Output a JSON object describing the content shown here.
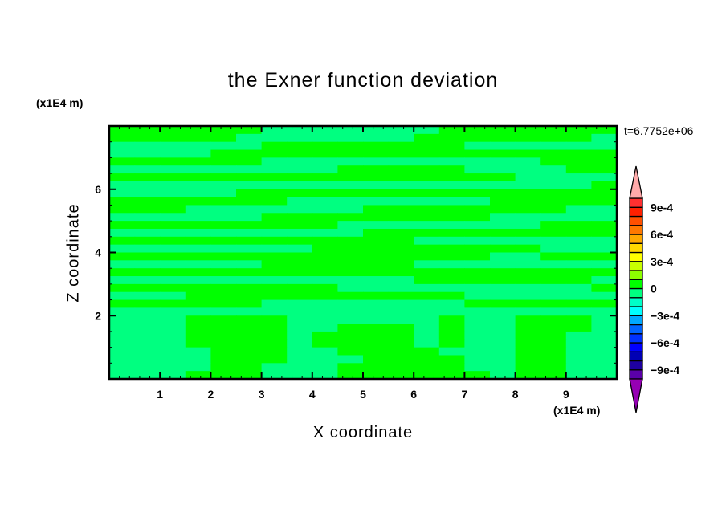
{
  "chart_data": {
    "type": "heatmap",
    "title": "the Exner function deviation",
    "xlabel": "X coordinate",
    "ylabel": "Z coordinate",
    "x_unit": "(x1E4 m)",
    "y_unit": "(x1E4 m)",
    "time_label": "t=6.7752e+06",
    "xlim": [
      0,
      10
    ],
    "ylim": [
      0,
      8
    ],
    "x_ticks": [
      1,
      2,
      3,
      4,
      5,
      6,
      7,
      8,
      9
    ],
    "y_ticks": [
      2,
      4,
      6
    ],
    "x_tick_labels": [
      "1",
      "2",
      "3",
      "4",
      "5",
      "6",
      "7",
      "8",
      "9"
    ],
    "y_tick_labels": [
      "2",
      "4",
      "6"
    ],
    "grid_x_step": 0.5,
    "grid_z_step": 0.25,
    "grid_rows_top_to_bottom": [
      [
        5e-05,
        5e-05,
        5e-05,
        5e-05,
        5e-05,
        5e-05,
        -5e-05,
        -5e-05,
        -5e-05,
        -5e-05,
        -5e-05,
        -5e-05,
        -5e-05,
        5e-05,
        5e-05,
        5e-05,
        5e-05,
        5e-05,
        5e-05,
        5e-05
      ],
      [
        5e-05,
        5e-05,
        5e-05,
        5e-05,
        5e-05,
        -5e-05,
        -5e-05,
        -5e-05,
        -5e-05,
        -5e-05,
        -5e-05,
        -5e-05,
        5e-05,
        5e-05,
        5e-05,
        5e-05,
        5e-05,
        5e-05,
        5e-05,
        -5e-05
      ],
      [
        -5e-05,
        -5e-05,
        -5e-05,
        -5e-05,
        -5e-05,
        -5e-05,
        5e-05,
        5e-05,
        5e-05,
        5e-05,
        5e-05,
        5e-05,
        5e-05,
        5e-05,
        -5e-05,
        -5e-05,
        -5e-05,
        -5e-05,
        -5e-05,
        -5e-05
      ],
      [
        -5e-05,
        -5e-05,
        -5e-05,
        -5e-05,
        5e-05,
        5e-05,
        5e-05,
        5e-05,
        5e-05,
        5e-05,
        5e-05,
        5e-05,
        5e-05,
        5e-05,
        5e-05,
        5e-05,
        5e-05,
        5e-05,
        5e-05,
        5e-05
      ],
      [
        5e-05,
        5e-05,
        5e-05,
        5e-05,
        5e-05,
        5e-05,
        -5e-05,
        -5e-05,
        -5e-05,
        -5e-05,
        -5e-05,
        -5e-05,
        -5e-05,
        -5e-05,
        -5e-05,
        -5e-05,
        -5e-05,
        5e-05,
        5e-05,
        5e-05
      ],
      [
        -5e-05,
        -5e-05,
        -5e-05,
        -5e-05,
        -5e-05,
        -5e-05,
        -5e-05,
        -5e-05,
        -5e-05,
        5e-05,
        5e-05,
        5e-05,
        5e-05,
        5e-05,
        -5e-05,
        -5e-05,
        -5e-05,
        -5e-05,
        5e-05,
        5e-05
      ],
      [
        5e-05,
        5e-05,
        5e-05,
        5e-05,
        5e-05,
        5e-05,
        5e-05,
        5e-05,
        5e-05,
        5e-05,
        5e-05,
        5e-05,
        5e-05,
        5e-05,
        5e-05,
        5e-05,
        -5e-05,
        -5e-05,
        -5e-05,
        -5e-05
      ],
      [
        -5e-05,
        -5e-05,
        -5e-05,
        -5e-05,
        -5e-05,
        -5e-05,
        -5e-05,
        -5e-05,
        -5e-05,
        -5e-05,
        -5e-05,
        -5e-05,
        -5e-05,
        -5e-05,
        -5e-05,
        -5e-05,
        -5e-05,
        -5e-05,
        -5e-05,
        5e-05
      ],
      [
        -5e-05,
        -5e-05,
        -5e-05,
        -5e-05,
        -5e-05,
        5e-05,
        5e-05,
        5e-05,
        5e-05,
        5e-05,
        5e-05,
        5e-05,
        5e-05,
        5e-05,
        5e-05,
        5e-05,
        5e-05,
        5e-05,
        5e-05,
        5e-05
      ],
      [
        5e-05,
        5e-05,
        5e-05,
        5e-05,
        5e-05,
        5e-05,
        5e-05,
        -5e-05,
        -5e-05,
        -5e-05,
        -5e-05,
        -5e-05,
        -5e-05,
        -5e-05,
        -5e-05,
        5e-05,
        5e-05,
        5e-05,
        5e-05,
        5e-05
      ],
      [
        5e-05,
        5e-05,
        5e-05,
        -5e-05,
        -5e-05,
        -5e-05,
        -5e-05,
        -5e-05,
        -5e-05,
        -5e-05,
        5e-05,
        5e-05,
        5e-05,
        5e-05,
        5e-05,
        5e-05,
        5e-05,
        5e-05,
        -5e-05,
        -5e-05
      ],
      [
        -5e-05,
        -5e-05,
        -5e-05,
        -5e-05,
        -5e-05,
        -5e-05,
        5e-05,
        5e-05,
        5e-05,
        5e-05,
        5e-05,
        5e-05,
        5e-05,
        5e-05,
        5e-05,
        -5e-05,
        -5e-05,
        -5e-05,
        -5e-05,
        -5e-05
      ],
      [
        5e-05,
        5e-05,
        5e-05,
        5e-05,
        5e-05,
        5e-05,
        5e-05,
        5e-05,
        5e-05,
        -5e-05,
        -5e-05,
        -5e-05,
        -5e-05,
        -5e-05,
        -5e-05,
        -5e-05,
        -5e-05,
        5e-05,
        5e-05,
        5e-05
      ],
      [
        -5e-05,
        -5e-05,
        -5e-05,
        -5e-05,
        -5e-05,
        -5e-05,
        -5e-05,
        -5e-05,
        -5e-05,
        -5e-05,
        5e-05,
        5e-05,
        5e-05,
        5e-05,
        5e-05,
        5e-05,
        5e-05,
        5e-05,
        5e-05,
        5e-05
      ],
      [
        5e-05,
        5e-05,
        5e-05,
        5e-05,
        5e-05,
        5e-05,
        5e-05,
        5e-05,
        5e-05,
        5e-05,
        5e-05,
        5e-05,
        -5e-05,
        -5e-05,
        -5e-05,
        -5e-05,
        -5e-05,
        -5e-05,
        -5e-05,
        -5e-05
      ],
      [
        -5e-05,
        -5e-05,
        -5e-05,
        -5e-05,
        -5e-05,
        -5e-05,
        -5e-05,
        -5e-05,
        5e-05,
        5e-05,
        5e-05,
        5e-05,
        5e-05,
        5e-05,
        5e-05,
        5e-05,
        5e-05,
        -5e-05,
        -5e-05,
        -5e-05
      ],
      [
        5e-05,
        5e-05,
        5e-05,
        5e-05,
        5e-05,
        5e-05,
        5e-05,
        5e-05,
        5e-05,
        5e-05,
        5e-05,
        5e-05,
        5e-05,
        5e-05,
        5e-05,
        -5e-05,
        -5e-05,
        5e-05,
        5e-05,
        5e-05
      ],
      [
        -5e-05,
        -5e-05,
        -5e-05,
        -5e-05,
        -5e-05,
        -5e-05,
        5e-05,
        5e-05,
        5e-05,
        5e-05,
        5e-05,
        5e-05,
        -5e-05,
        -5e-05,
        -5e-05,
        -5e-05,
        -5e-05,
        -5e-05,
        -5e-05,
        -5e-05
      ],
      [
        5e-05,
        5e-05,
        5e-05,
        5e-05,
        5e-05,
        5e-05,
        5e-05,
        5e-05,
        5e-05,
        5e-05,
        5e-05,
        5e-05,
        5e-05,
        5e-05,
        5e-05,
        5e-05,
        5e-05,
        5e-05,
        5e-05,
        5e-05
      ],
      [
        -5e-05,
        -5e-05,
        -5e-05,
        -5e-05,
        -5e-05,
        -5e-05,
        -5e-05,
        -5e-05,
        -5e-05,
        -5e-05,
        -5e-05,
        -5e-05,
        5e-05,
        5e-05,
        5e-05,
        5e-05,
        5e-05,
        5e-05,
        5e-05,
        -5e-05
      ],
      [
        5e-05,
        5e-05,
        5e-05,
        5e-05,
        5e-05,
        5e-05,
        5e-05,
        5e-05,
        5e-05,
        -5e-05,
        -5e-05,
        -5e-05,
        -5e-05,
        -5e-05,
        -5e-05,
        -5e-05,
        -5e-05,
        -5e-05,
        -5e-05,
        5e-05
      ],
      [
        -5e-05,
        -5e-05,
        -5e-05,
        5e-05,
        5e-05,
        5e-05,
        5e-05,
        5e-05,
        5e-05,
        5e-05,
        5e-05,
        5e-05,
        5e-05,
        5e-05,
        -5e-05,
        -5e-05,
        -5e-05,
        -5e-05,
        -5e-05,
        -5e-05
      ],
      [
        5e-05,
        5e-05,
        5e-05,
        5e-05,
        5e-05,
        5e-05,
        -5e-05,
        -5e-05,
        -5e-05,
        -5e-05,
        -5e-05,
        -5e-05,
        -5e-05,
        -5e-05,
        5e-05,
        5e-05,
        5e-05,
        5e-05,
        5e-05,
        5e-05
      ],
      [
        -5e-05,
        -5e-05,
        -5e-05,
        -5e-05,
        -5e-05,
        -5e-05,
        -5e-05,
        -5e-05,
        -5e-05,
        -5e-05,
        -5e-05,
        -5e-05,
        -5e-05,
        -5e-05,
        -5e-05,
        -5e-05,
        -5e-05,
        -5e-05,
        -5e-05,
        -5e-05
      ],
      [
        -5e-05,
        -5e-05,
        -5e-05,
        5e-05,
        5e-05,
        5e-05,
        5e-05,
        -5e-05,
        -5e-05,
        -5e-05,
        -5e-05,
        -5e-05,
        -5e-05,
        5e-05,
        -5e-05,
        -5e-05,
        5e-05,
        5e-05,
        5e-05,
        -5e-05
      ],
      [
        -5e-05,
        -5e-05,
        -5e-05,
        5e-05,
        5e-05,
        5e-05,
        5e-05,
        -5e-05,
        -5e-05,
        5e-05,
        5e-05,
        5e-05,
        -5e-05,
        5e-05,
        -5e-05,
        -5e-05,
        5e-05,
        5e-05,
        5e-05,
        -5e-05
      ],
      [
        -5e-05,
        -5e-05,
        -5e-05,
        5e-05,
        5e-05,
        5e-05,
        5e-05,
        -5e-05,
        5e-05,
        5e-05,
        5e-05,
        5e-05,
        -5e-05,
        5e-05,
        -5e-05,
        -5e-05,
        5e-05,
        5e-05,
        -5e-05,
        -5e-05
      ],
      [
        -5e-05,
        -5e-05,
        -5e-05,
        5e-05,
        5e-05,
        5e-05,
        5e-05,
        -5e-05,
        5e-05,
        5e-05,
        5e-05,
        5e-05,
        -5e-05,
        5e-05,
        -5e-05,
        -5e-05,
        5e-05,
        5e-05,
        -5e-05,
        -5e-05
      ],
      [
        -5e-05,
        -5e-05,
        -5e-05,
        -5e-05,
        5e-05,
        5e-05,
        5e-05,
        -5e-05,
        -5e-05,
        5e-05,
        5e-05,
        5e-05,
        5e-05,
        -5e-05,
        -5e-05,
        -5e-05,
        5e-05,
        5e-05,
        -5e-05,
        -5e-05
      ],
      [
        -5e-05,
        -5e-05,
        -5e-05,
        -5e-05,
        5e-05,
        5e-05,
        5e-05,
        -5e-05,
        -5e-05,
        -5e-05,
        5e-05,
        5e-05,
        5e-05,
        5e-05,
        -5e-05,
        -5e-05,
        5e-05,
        5e-05,
        -5e-05,
        -5e-05
      ],
      [
        -5e-05,
        -5e-05,
        -5e-05,
        -5e-05,
        5e-05,
        5e-05,
        -5e-05,
        -5e-05,
        -5e-05,
        5e-05,
        5e-05,
        5e-05,
        5e-05,
        5e-05,
        -5e-05,
        -5e-05,
        5e-05,
        5e-05,
        -5e-05,
        -5e-05
      ],
      [
        -5e-05,
        -5e-05,
        -5e-05,
        5e-05,
        5e-05,
        5e-05,
        -5e-05,
        -5e-05,
        -5e-05,
        5e-05,
        5e-05,
        5e-05,
        5e-05,
        5e-05,
        5e-05,
        -5e-05,
        5e-05,
        5e-05,
        -5e-05,
        -5e-05
      ]
    ],
    "colorbar": {
      "levels_min": -0.001,
      "levels_max": 0.001,
      "level_step": 0.0001,
      "colors_bottom_to_top": [
        "#5a00a8",
        "#1e00a0",
        "#0000b4",
        "#0000ff",
        "#0032ff",
        "#0064ff",
        "#00a8ff",
        "#00ffff",
        "#00ffc8",
        "#00ff80",
        "#00ff00",
        "#8cff00",
        "#c8ff00",
        "#ffff00",
        "#ffd800",
        "#ffa800",
        "#ff7800",
        "#ff5000",
        "#ff2000",
        "#ff3030"
      ],
      "under_color": "#9600b4",
      "over_color": "#ffaaaa",
      "labels": [
        {
          "value": 0.0009,
          "text": "9e-4"
        },
        {
          "value": 0.0006,
          "text": "6e-4"
        },
        {
          "value": 0.0003,
          "text": "3e-4"
        },
        {
          "value": 0,
          "text": "0"
        },
        {
          "value": -0.0003,
          "text": "−3e-4"
        },
        {
          "value": -0.0006,
          "text": "−6e-4"
        },
        {
          "value": -0.0009,
          "text": "−9e-4"
        }
      ]
    }
  }
}
